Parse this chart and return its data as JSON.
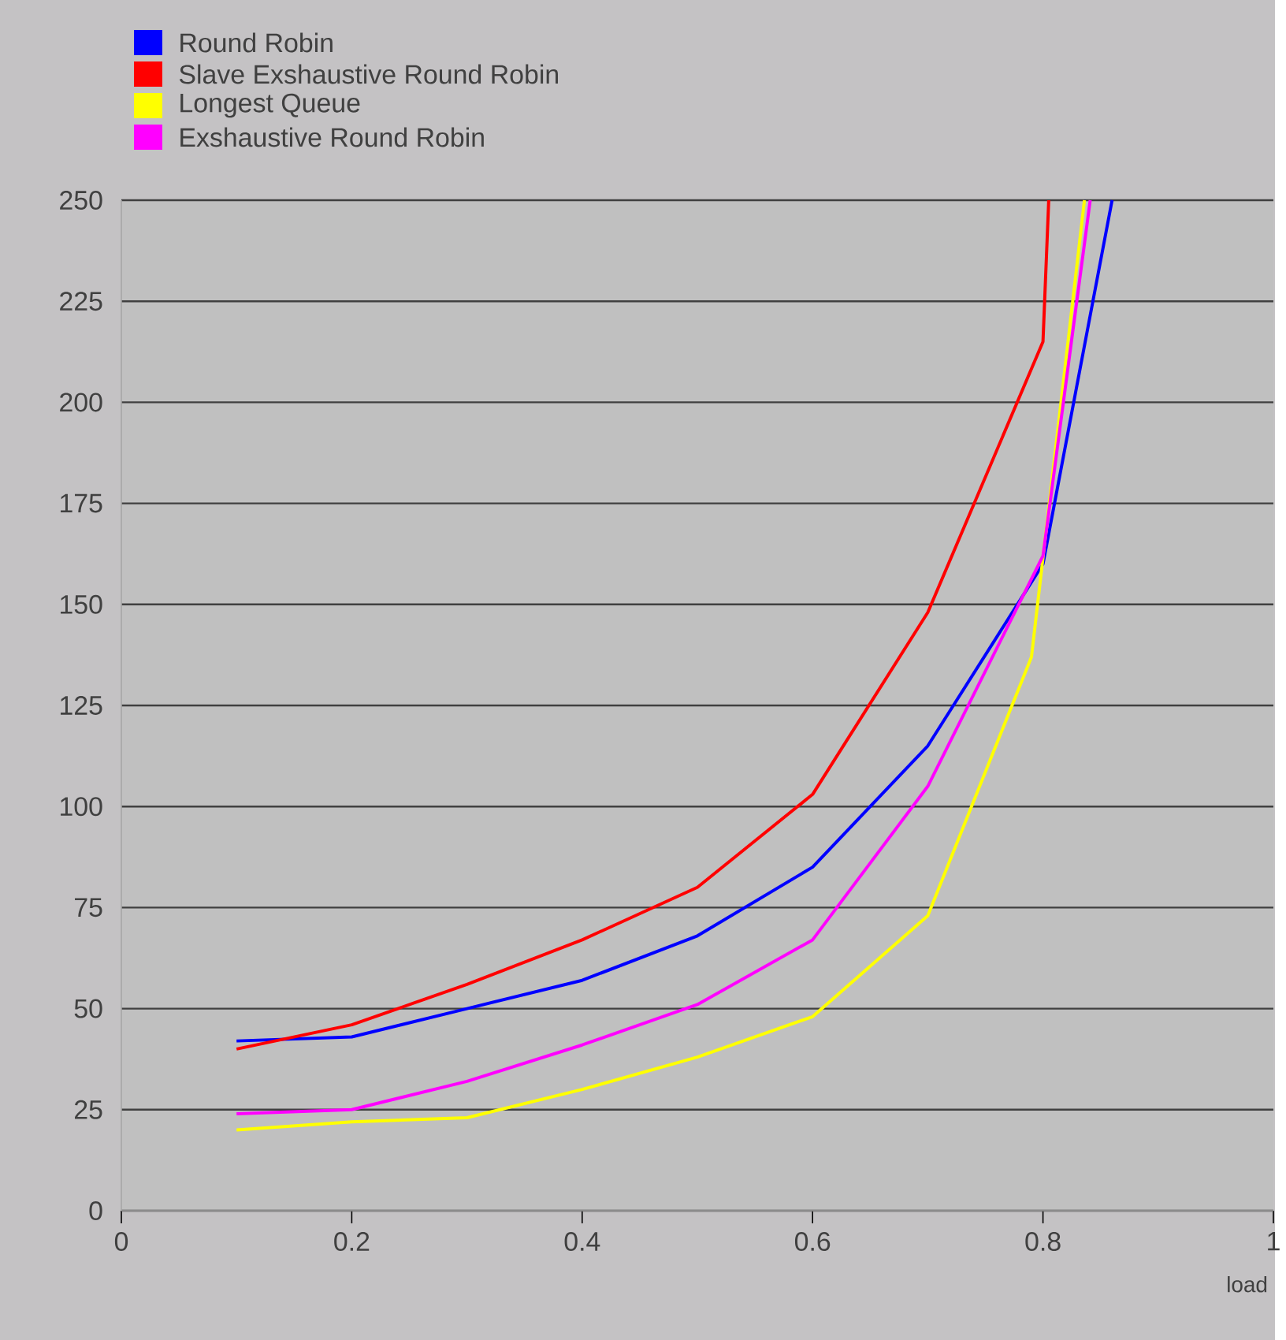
{
  "chart_data": {
    "type": "line",
    "xlabel": "load",
    "xlim": [
      0,
      1
    ],
    "ylim": [
      0,
      250
    ],
    "xticks": [
      0,
      0.2,
      0.4,
      0.6,
      0.8,
      1
    ],
    "yticks": [
      0,
      25,
      50,
      75,
      100,
      125,
      150,
      175,
      200,
      225,
      250
    ],
    "grid": "y",
    "legend": "top left",
    "marker": "none",
    "line_style": "solid",
    "series": [
      {
        "name": "Round Robin",
        "color": "#0000ff",
        "x": [
          0.1,
          0.2,
          0.3,
          0.4,
          0.5,
          0.6,
          0.7,
          0.8,
          0.86
        ],
        "values": [
          42,
          43,
          50,
          57,
          68,
          85,
          115,
          160,
          250
        ]
      },
      {
        "name": "Slave Exshaustive Round Robin",
        "color": "#ff0000",
        "x": [
          0.1,
          0.2,
          0.3,
          0.4,
          0.5,
          0.6,
          0.7,
          0.8,
          0.805
        ],
        "values": [
          40,
          46,
          56,
          67,
          80,
          103,
          148,
          215,
          250
        ]
      },
      {
        "name": "Longest Queue",
        "color": "#ffff00",
        "x": [
          0.1,
          0.2,
          0.3,
          0.4,
          0.5,
          0.6,
          0.7,
          0.79,
          0.836
        ],
        "values": [
          20,
          22,
          23,
          30,
          38,
          48,
          73,
          137,
          250
        ]
      },
      {
        "name": "Exshaustive Round Robin",
        "color": "#ff00ff",
        "x": [
          0.1,
          0.2,
          0.3,
          0.4,
          0.5,
          0.6,
          0.7,
          0.8,
          0.841
        ],
        "values": [
          24,
          25,
          32,
          41,
          51,
          67,
          105,
          162,
          250
        ]
      }
    ]
  }
}
